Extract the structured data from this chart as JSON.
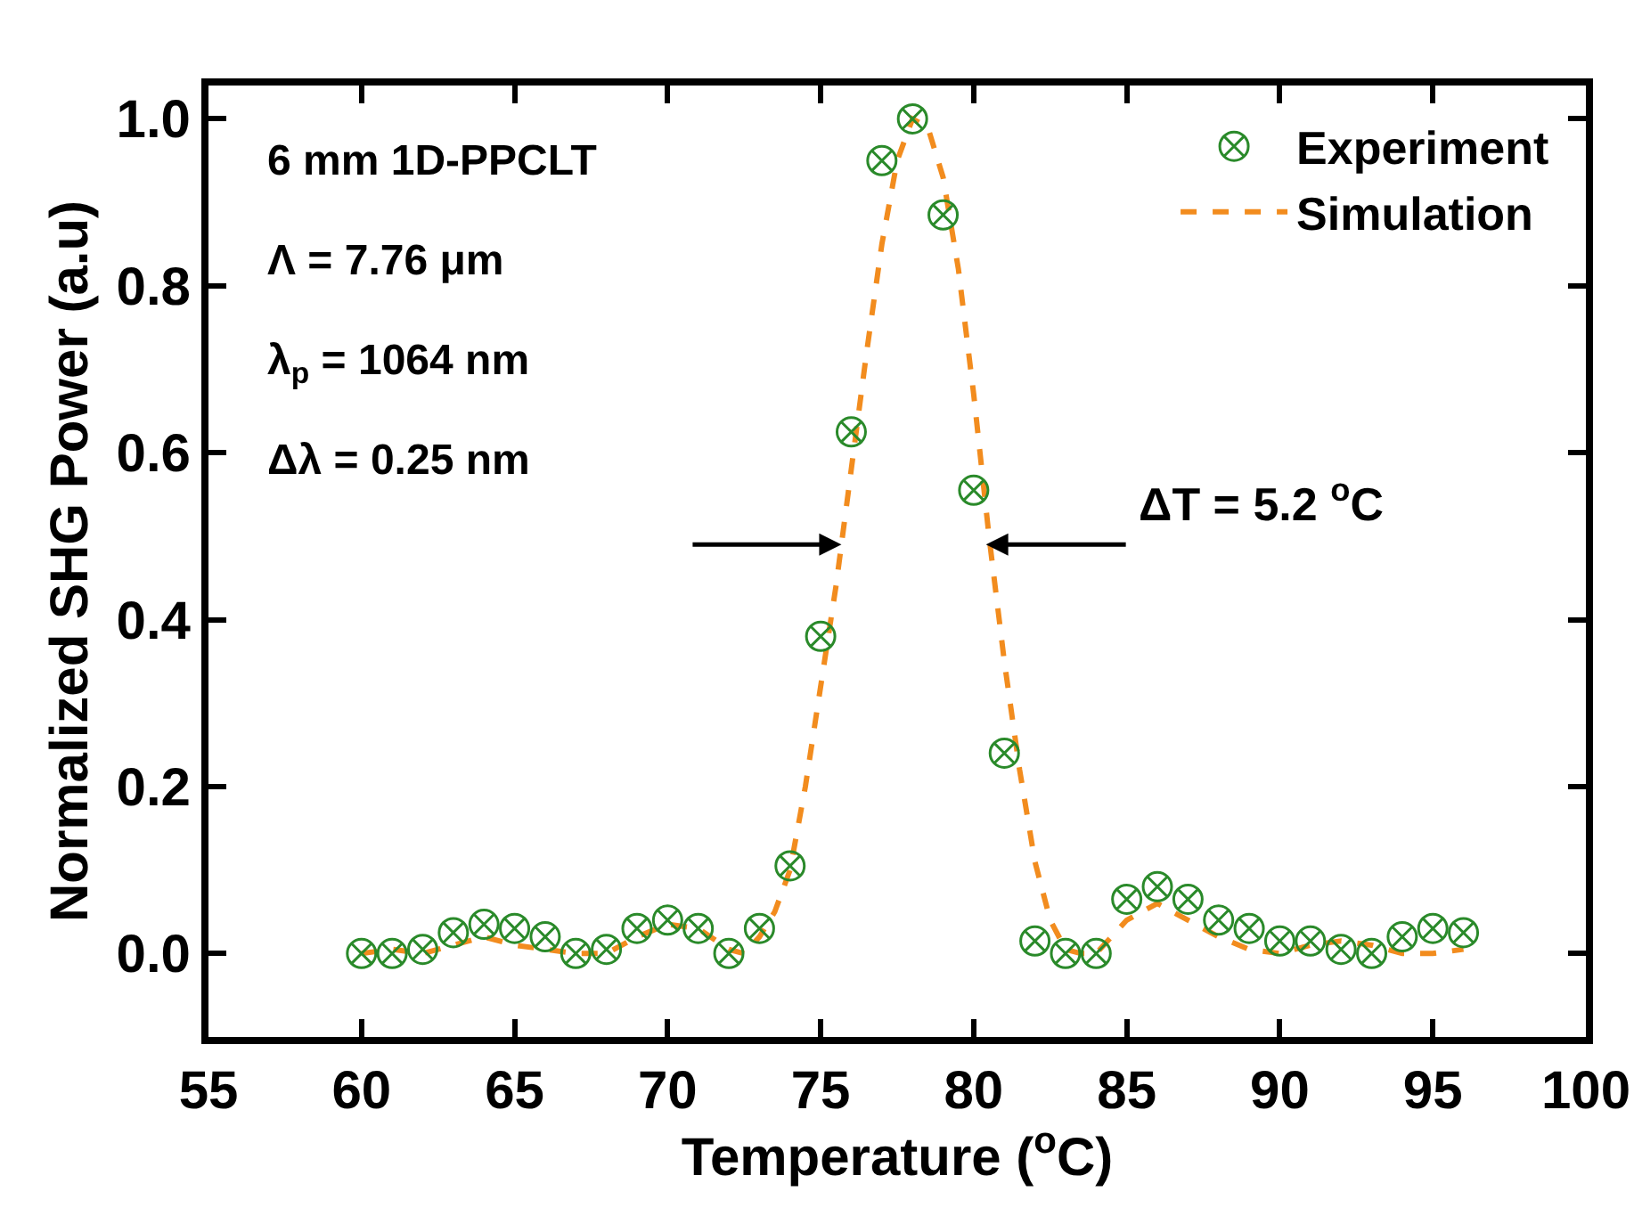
{
  "chart_data": {
    "type": "scatter",
    "xlabel": "Temperature ($^{o}$C)",
    "ylabel": "Normalized SHG Power (a.u)",
    "xlim": [
      55,
      100
    ],
    "xticks": [
      55,
      60,
      65,
      70,
      75,
      80,
      85,
      90,
      95,
      100
    ],
    "ylim": [
      -0.1,
      1.04
    ],
    "yticks": [
      {
        "value": 0,
        "label": "0.0"
      },
      {
        "value": 0.2,
        "label": "0.2"
      },
      {
        "value": 0.4,
        "label": "0.4"
      },
      {
        "value": 0.6,
        "label": "0.6"
      },
      {
        "value": 0.8,
        "label": "0.8"
      },
      {
        "value": 1,
        "label": "1.0"
      }
    ],
    "grid": false,
    "legend": "top right",
    "series": [
      {
        "name": "Experiment",
        "marker": "cross",
        "color": "#2a8a2a",
        "x": [
          60,
          61,
          62,
          63,
          64,
          65,
          66,
          67,
          68,
          69,
          70,
          71,
          72,
          73,
          74,
          75,
          76,
          77,
          78,
          79,
          80,
          81,
          82,
          83,
          84,
          85,
          86,
          87,
          88,
          89,
          90,
          91,
          92,
          93,
          94,
          95,
          96
        ],
        "values": [
          0.0,
          0.0,
          0.005,
          0.025,
          0.035,
          0.03,
          0.02,
          0.0,
          0.005,
          0.03,
          0.04,
          0.03,
          0.0,
          0.03,
          0.105,
          0.38,
          0.625,
          0.95,
          1.0,
          0.885,
          0.555,
          0.24,
          0.015,
          0.0,
          0.0,
          0.065,
          0.08,
          0.065,
          0.04,
          0.03,
          0.015,
          0.015,
          0.005,
          0.0,
          0.02,
          0.03,
          0.025
        ]
      },
      {
        "name": "Simulation",
        "type": "line",
        "line_style": "dashed",
        "marker": "none",
        "color": "#f28c1e",
        "x": [
          60,
          61,
          62,
          63,
          64,
          65,
          66,
          67,
          68,
          69,
          70,
          71,
          72,
          72.5,
          73,
          73.5,
          74,
          74.5,
          75,
          75.5,
          76,
          76.5,
          77,
          77.5,
          78,
          78.5,
          79,
          79.5,
          80,
          80.5,
          81,
          81.5,
          82,
          82.5,
          83,
          83.5,
          84,
          84.5,
          85,
          86,
          87,
          88,
          89,
          90,
          91,
          92,
          93,
          94,
          95,
          96
        ],
        "values": [
          0.0,
          0.005,
          0.0,
          0.01,
          0.02,
          0.01,
          0.005,
          0.0,
          0.0,
          0.02,
          0.035,
          0.03,
          0.005,
          0.0,
          0.02,
          0.05,
          0.1,
          0.2,
          0.32,
          0.44,
          0.58,
          0.72,
          0.85,
          0.95,
          1.0,
          0.99,
          0.93,
          0.82,
          0.67,
          0.5,
          0.35,
          0.22,
          0.11,
          0.04,
          0.005,
          0.0,
          0.0,
          0.02,
          0.04,
          0.06,
          0.04,
          0.02,
          0.005,
          0.0,
          0.01,
          0.015,
          0.01,
          0.0,
          0.0,
          0.005
        ]
      }
    ],
    "annotations": [
      "6 mm 1D-PPCLT",
      "Λ = 7.76 μm",
      "λ$_{p}$ = 1064 nm",
      "Δλ = 0.25 nm",
      {
        "text": "ΔT = 5.2 $^{o}$C",
        "x": 80.4,
        "y": 0.49
      }
    ]
  }
}
